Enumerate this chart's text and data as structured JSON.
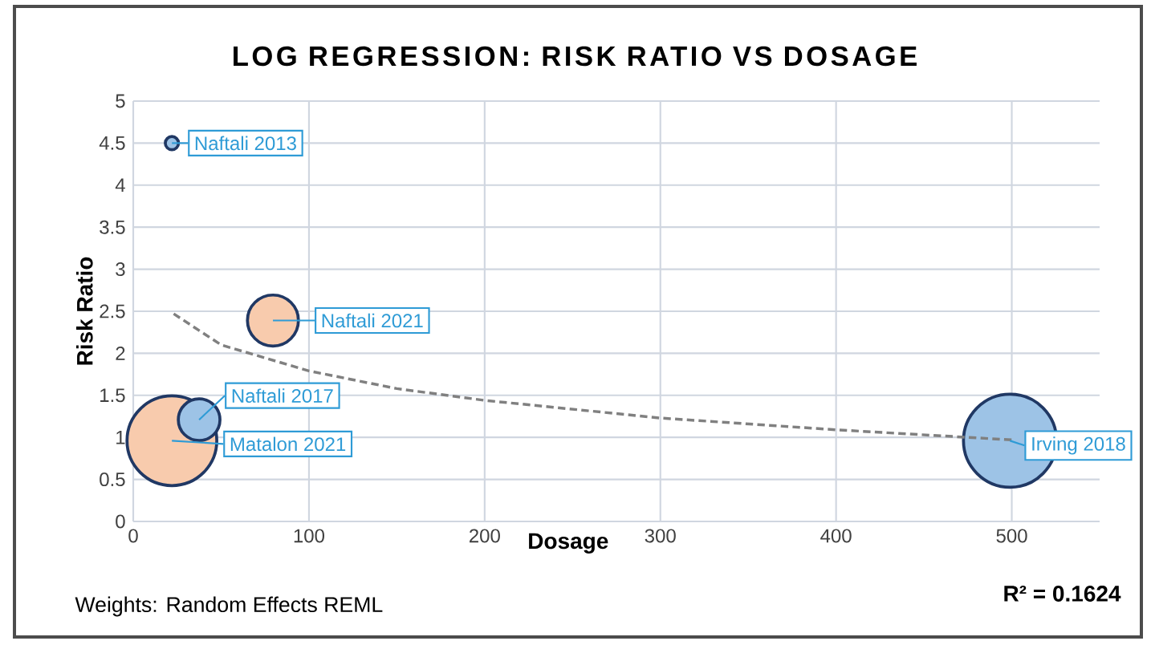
{
  "chart_data": {
    "type": "bubble",
    "title": "LOG REGRESSION: RISK RATIO VS DOSAGE",
    "xlabel": "Dosage",
    "ylabel": "Risk Ratio",
    "xlim": [
      0,
      550
    ],
    "xticks": [
      0,
      100,
      200,
      300,
      400,
      500
    ],
    "ylim": [
      0,
      5
    ],
    "yticks": [
      0,
      0.5,
      1,
      1.5,
      2,
      2.5,
      3,
      3.5,
      4,
      4.5,
      5
    ],
    "grid": true,
    "series": [
      {
        "x": [
          22,
          79.5,
          22,
          37.5,
          499
        ],
        "values": [
          4.5,
          2.39,
          0.96,
          1.21,
          0.96
        ],
        "sizes": [
          0.02,
          0.3,
          0.93,
          0.2,
          1
        ],
        "colors": [
          "#9dc3e6",
          "#f8cbad",
          "#f8cbad",
          "#9dc3e6",
          "#9dc3e6"
        ]
      },
      {
        "type": "line",
        "x": [
          23,
          50,
          100,
          150,
          200,
          300,
          400,
          500
        ],
        "values": [
          2.47,
          2.1,
          1.79,
          1.58,
          1.44,
          1.23,
          1.09,
          0.97
        ],
        "color": "#808080",
        "line_style": "dashed",
        "marker": "none"
      }
    ],
    "annotations": [
      {
        "text": "Naftali 2013",
        "x": 22,
        "y": 4.5
      },
      {
        "text": "Naftali 2021",
        "x": 79.5,
        "y": 2.39
      },
      {
        "text": "Matalon 2021",
        "x": 22,
        "y": 0.96
      },
      {
        "text": "Naftali 2017",
        "x": 37.5,
        "y": 1.21
      },
      {
        "text": "Irving 2018",
        "x": 499,
        "y": 0.96
      },
      "Weights: Random Effects REML",
      "R² = 0.1624"
    ]
  }
}
